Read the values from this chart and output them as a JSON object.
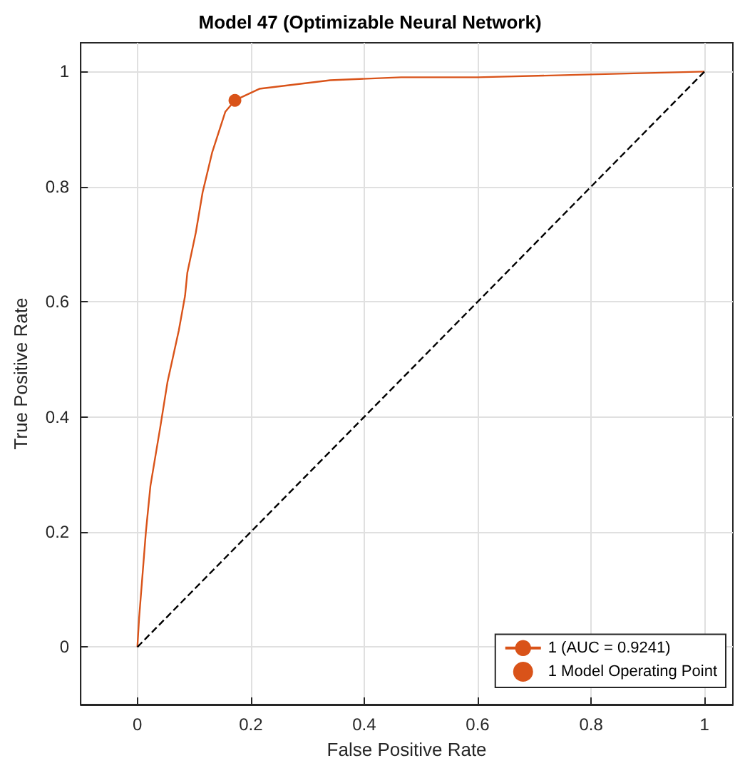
{
  "chart_data": {
    "type": "line",
    "title": "Model 47 (Optimizable Neural Network)",
    "xlabel": "False Positive Rate",
    "ylabel": "True Positive Rate",
    "xlim": [
      -0.1,
      1.05
    ],
    "ylim": [
      -0.1,
      1.05
    ],
    "xticks": [
      0,
      0.2,
      0.4,
      0.6,
      0.8,
      1
    ],
    "yticks": [
      0,
      0.2,
      0.4,
      0.6,
      0.8,
      1
    ],
    "grid": true,
    "legend": "bottom right",
    "series": [
      {
        "name": "1 (AUC = 0.9241)",
        "color": "#d95319",
        "marker": "none",
        "line_style": "solid",
        "x": [
          0,
          0.003,
          0.015,
          0.023,
          0.04,
          0.053,
          0.073,
          0.084,
          0.088,
          0.103,
          0.115,
          0.132,
          0.155,
          0.172,
          0.215,
          0.34,
          0.465,
          0.6,
          0.8,
          1
        ],
        "values": [
          0,
          0.05,
          0.2,
          0.28,
          0.38,
          0.46,
          0.55,
          0.61,
          0.65,
          0.72,
          0.79,
          0.86,
          0.93,
          0.95,
          0.97,
          0.985,
          0.99,
          0.99,
          0.995,
          1
        ]
      },
      {
        "color": "#000000",
        "marker": "none",
        "line_style": "dashed",
        "x": [
          0,
          1
        ],
        "values": [
          0,
          1
        ]
      },
      {
        "name": "1 Model Operating Point",
        "color": "#d95319",
        "type": "scatter",
        "marker": "circle",
        "x": [
          0.172
        ],
        "values": [
          0.95
        ]
      }
    ]
  }
}
